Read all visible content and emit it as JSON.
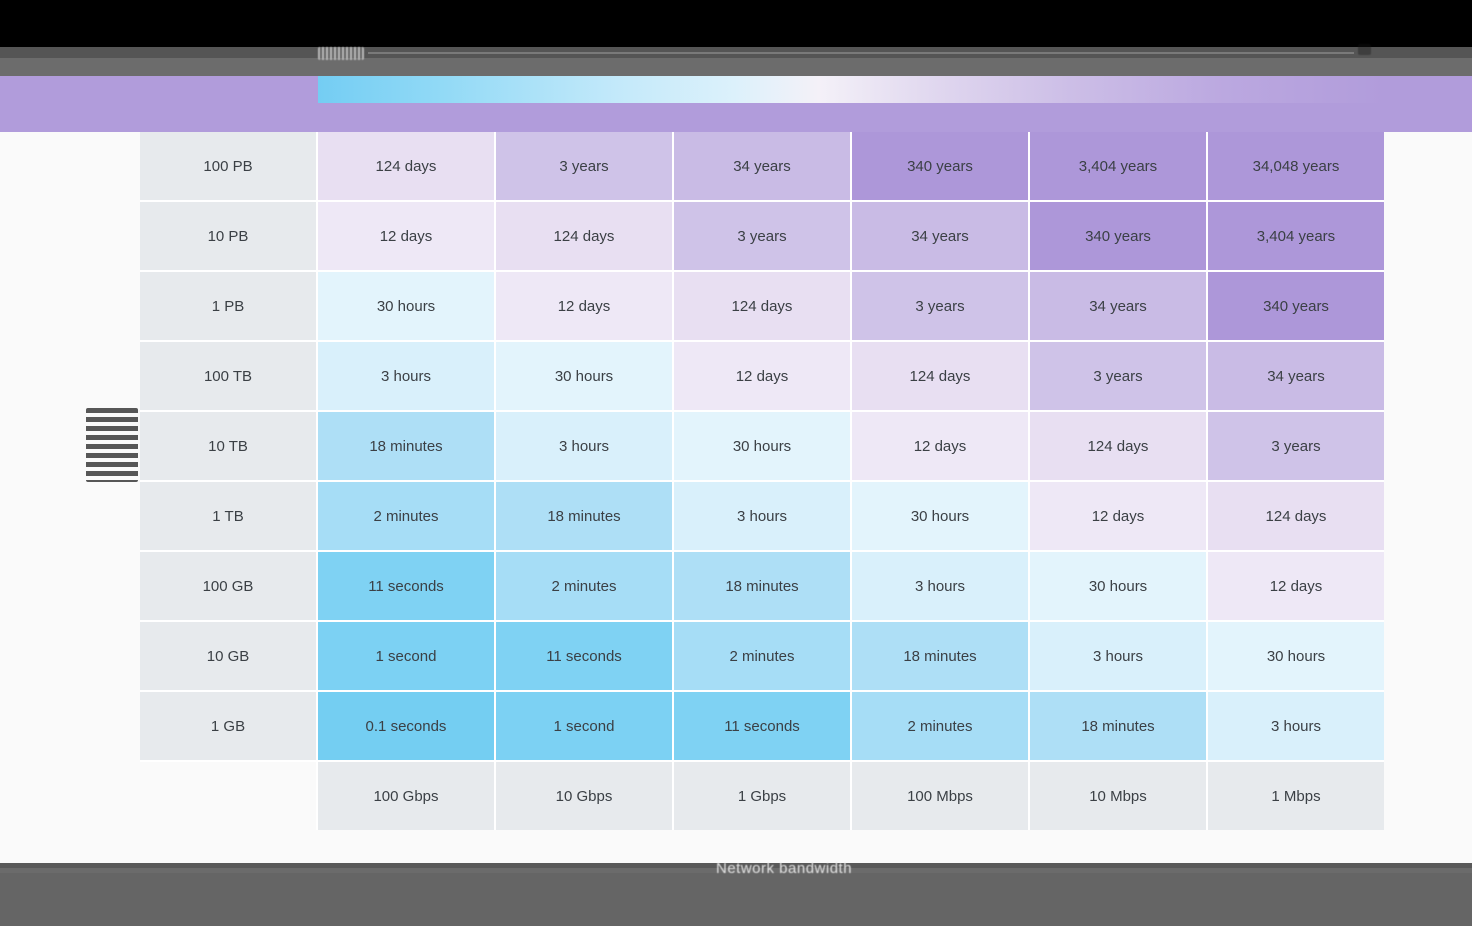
{
  "page": {
    "background": "#fafafa"
  },
  "browser": {
    "topbar_color": "#000000",
    "toolbar_color_top": "#555555",
    "toolbar_color_bottom": "#6c6c6c",
    "banner_color": "#b19cdb"
  },
  "legend": {
    "gradient_start_color": "#74cdf3",
    "gradient_end_color": "#b19cdb"
  },
  "chart_data": {
    "type": "heatmap",
    "rows": [
      "100 PB",
      "10 PB",
      "1 PB",
      "100 TB",
      "10 TB",
      "1 TB",
      "100 GB",
      "10 GB",
      "1 GB"
    ],
    "columns": [
      "100 Gbps",
      "10 Gbps",
      "1 Gbps",
      "100 Mbps",
      "10 Mbps",
      "1 Mbps"
    ],
    "values": [
      [
        "124 days",
        "3 years",
        "34 years",
        "340 years",
        "3,404 years",
        "34,048 years"
      ],
      [
        "12 days",
        "124 days",
        "3 years",
        "34 years",
        "340 years",
        "3,404 years"
      ],
      [
        "30 hours",
        "12 days",
        "124 days",
        "3 years",
        "34 years",
        "340 years"
      ],
      [
        "3 hours",
        "30 hours",
        "12 days",
        "124 days",
        "3 years",
        "34 years"
      ],
      [
        "18 minutes",
        "3 hours",
        "30 hours",
        "12 days",
        "124 days",
        "3 years"
      ],
      [
        "2 minutes",
        "18 minutes",
        "3 hours",
        "30 hours",
        "12 days",
        "124 days"
      ],
      [
        "11 seconds",
        "2 minutes",
        "18 minutes",
        "3 hours",
        "30 hours",
        "12 days"
      ],
      [
        "1 second",
        "11 seconds",
        "2 minutes",
        "18 minutes",
        "3 hours",
        "30 hours"
      ],
      [
        "0.1 seconds",
        "1 second",
        "11 seconds",
        "2 minutes",
        "18 minutes",
        "3 hours"
      ]
    ],
    "xlabel": "Network bandwidth",
    "legend_position": "top",
    "row_header_color": "#e7eaed",
    "column_header_color": "#e7eaed",
    "text_color": "#3b4045",
    "cell_colors": {
      "0.1 seconds": "#74cef2",
      "1 second": "#7cd1f3",
      "11 seconds": "#7fd2f3",
      "2 minutes": "#a6ddf6",
      "18 minutes": "#aedff6",
      "3 hours": "#d9f0fb",
      "30 hours": "#e3f4fc",
      "12 days": "#eee8f6",
      "124 days": "#e8dff2",
      "3 years": "#cfc3e8",
      "34 years": "#c9bbe5",
      "340 years": "#ad97d9",
      "3,404 years": "#ad97d9",
      "34,048 years": "#ad97d9"
    }
  }
}
